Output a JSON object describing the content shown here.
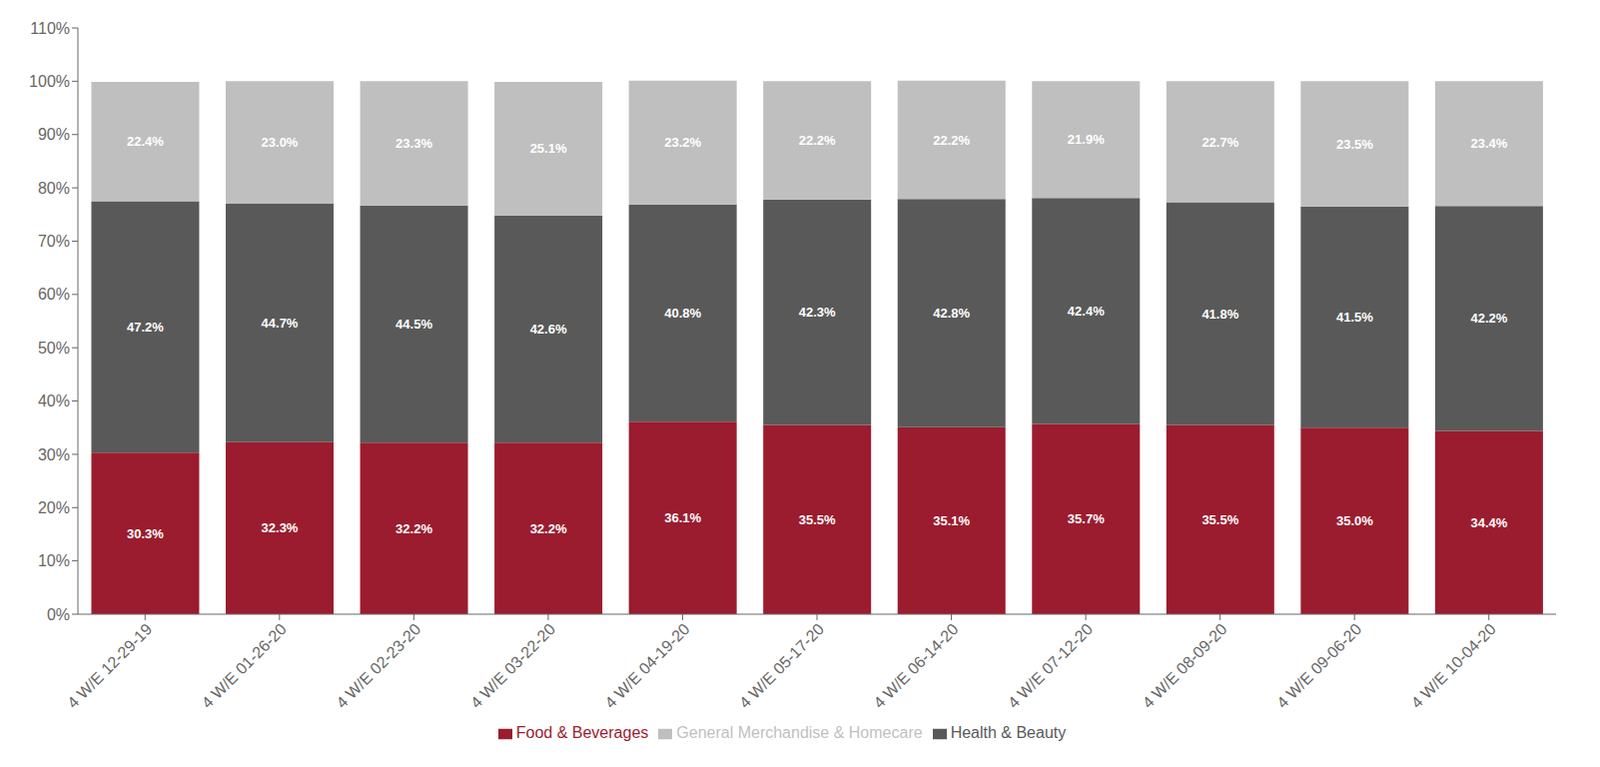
{
  "chart_data": {
    "type": "bar",
    "stacked": true,
    "data_labels": true,
    "grid": false,
    "legend": "bottom",
    "categories": [
      "4 W/E 12-29-19",
      "4 W/E 01-26-20",
      "4 W/E 02-23-20",
      "4 W/E 03-22-20",
      "4 W/E 04-19-20",
      "4 W/E 05-17-20",
      "4 W/E 06-14-20",
      "4 W/E 07-12-20",
      "4 W/E 08-09-20",
      "4 W/E 09-06-20",
      "4 W/E 10-04-20"
    ],
    "series": [
      {
        "name": "Food & Beverages",
        "color": "#9B1C2E",
        "values": [
          30.3,
          32.3,
          32.2,
          32.2,
          36.1,
          35.5,
          35.1,
          35.7,
          35.5,
          35.0,
          34.4
        ],
        "value_labels": [
          "30.3%",
          "32.3%",
          "32.2%",
          "32.2%",
          "36.1%",
          "35.5%",
          "35.1%",
          "35.7%",
          "35.5%",
          "35.0%",
          "34.4%"
        ]
      },
      {
        "name": "Health & Beauty",
        "color": "#595959",
        "values": [
          47.2,
          44.7,
          44.5,
          42.6,
          40.8,
          42.3,
          42.8,
          42.4,
          41.8,
          41.5,
          42.2
        ],
        "value_labels": [
          "47.2%",
          "44.7%",
          "44.5%",
          "42.6%",
          "40.8%",
          "42.3%",
          "42.8%",
          "42.4%",
          "41.8%",
          "41.5%",
          "42.2%"
        ]
      },
      {
        "name": "General Merchandise & Homecare",
        "color": "#BFBFBF",
        "values": [
          22.4,
          23.0,
          23.3,
          25.1,
          23.2,
          22.2,
          22.2,
          21.9,
          22.7,
          23.5,
          23.4
        ],
        "value_labels": [
          "22.4%",
          "23.0%",
          "23.3%",
          "25.1%",
          "23.2%",
          "22.2%",
          "22.2%",
          "21.9%",
          "22.7%",
          "23.5%",
          "23.4%"
        ]
      }
    ],
    "ylim": [
      0,
      110
    ],
    "yticks": [
      {
        "value": 0,
        "label": "0%"
      },
      {
        "value": 10,
        "label": "10%"
      },
      {
        "value": 20,
        "label": "20%"
      },
      {
        "value": 30,
        "label": "30%"
      },
      {
        "value": 40,
        "label": "40%"
      },
      {
        "value": 50,
        "label": "50%"
      },
      {
        "value": 60,
        "label": "60%"
      },
      {
        "value": 70,
        "label": "70%"
      },
      {
        "value": 80,
        "label": "80%"
      },
      {
        "value": 90,
        "label": "90%"
      },
      {
        "value": 100,
        "label": "100%"
      },
      {
        "value": 110,
        "label": "110%"
      }
    ]
  }
}
